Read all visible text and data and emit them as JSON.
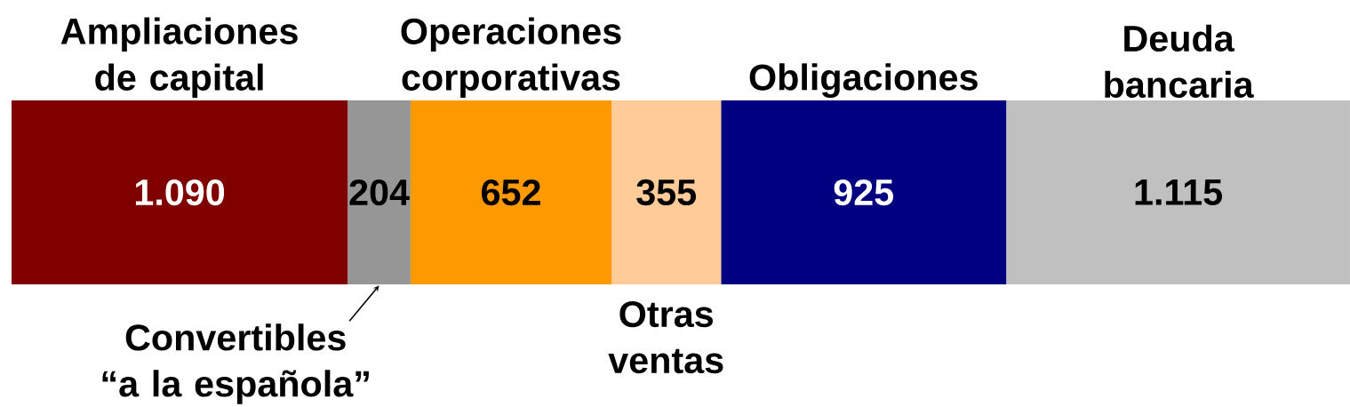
{
  "chart_data": {
    "type": "bar",
    "orientation": "horizontal",
    "stacked": true,
    "tick_labels": false,
    "categories": [
      null
    ],
    "series": [
      {
        "name": "Ampliaciones de capital",
        "color": "#800000",
        "values": [
          1090
        ],
        "value_labels": [
          "1.090"
        ]
      },
      {
        "name": "Convertibles “a la española”",
        "color": "#969696",
        "values": [
          204
        ],
        "value_labels": [
          "204"
        ]
      },
      {
        "name": "Operaciones corporativas",
        "color": "#ff9900",
        "values": [
          652
        ],
        "value_labels": [
          "652"
        ]
      },
      {
        "name": "Otras ventas",
        "color": "#ffcc99",
        "values": [
          355
        ],
        "value_labels": [
          "355"
        ]
      },
      {
        "name": "Obligaciones",
        "color": "#000080",
        "values": [
          925
        ],
        "value_labels": [
          "925"
        ]
      },
      {
        "name": "Deuda bancaria",
        "color": "#c0c0c0",
        "values": [
          1115
        ],
        "value_labels": [
          "1.115"
        ]
      }
    ]
  }
}
